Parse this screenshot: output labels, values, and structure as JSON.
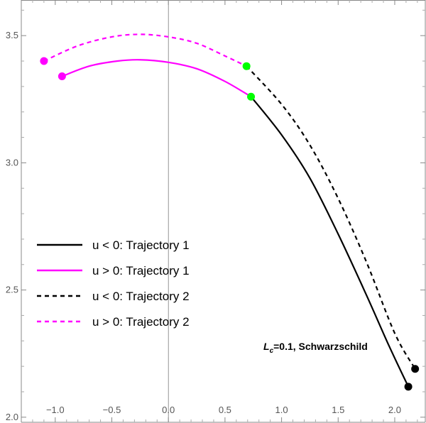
{
  "chart_data": {
    "type": "line",
    "title": "",
    "xlabel": "",
    "ylabel": "",
    "xlim": [
      -1.3,
      2.27
    ],
    "ylim": [
      1.98,
      3.64
    ],
    "x_ticks": [
      -1.0,
      -0.5,
      0.0,
      0.5,
      1.0,
      1.5,
      2.0
    ],
    "x_tick_labels": [
      "-1.0",
      "-0.5",
      "0.0",
      "0.5",
      "1.0",
      "1.5",
      "2.0"
    ],
    "y_ticks": [
      2.0,
      2.5,
      3.0,
      3.5
    ],
    "y_tick_labels": [
      "2.0",
      "2.5",
      "3.0",
      "3.5"
    ],
    "grid": false,
    "legend_position": "left-middle",
    "annotation": {
      "main": "L",
      "subscript": "c",
      "rest": "=0.1, Schwarzschild"
    },
    "colors": {
      "black": "#000000",
      "magenta": "#ff00ff",
      "green": "#00ff00"
    },
    "series": [
      {
        "name": "u < 0: Trajectory 1",
        "color": "#000000",
        "style": "solid",
        "points": [
          [
            0.73,
            3.26
          ],
          [
            1.0,
            3.11
          ],
          [
            1.25,
            2.94
          ],
          [
            1.5,
            2.72
          ],
          [
            1.75,
            2.48
          ],
          [
            1.95,
            2.28
          ],
          [
            2.12,
            2.12
          ]
        ]
      },
      {
        "name": "u > 0: Trajectory 1",
        "color": "#ff00ff",
        "style": "solid",
        "points": [
          [
            -0.94,
            3.34
          ],
          [
            -0.7,
            3.38
          ],
          [
            -0.45,
            3.4
          ],
          [
            -0.25,
            3.405
          ],
          [
            0.0,
            3.395
          ],
          [
            0.25,
            3.37
          ],
          [
            0.5,
            3.32
          ],
          [
            0.73,
            3.26
          ]
        ]
      },
      {
        "name": "u < 0: Trajectory 2",
        "color": "#000000",
        "style": "dashed",
        "points": [
          [
            0.69,
            3.38
          ],
          [
            1.0,
            3.23
          ],
          [
            1.25,
            3.07
          ],
          [
            1.5,
            2.86
          ],
          [
            1.75,
            2.61
          ],
          [
            2.0,
            2.33
          ],
          [
            2.18,
            2.19
          ]
        ]
      },
      {
        "name": "u > 0: Trajectory 2",
        "color": "#ff00ff",
        "style": "dashed",
        "points": [
          [
            -1.1,
            3.4
          ],
          [
            -0.8,
            3.46
          ],
          [
            -0.5,
            3.495
          ],
          [
            -0.25,
            3.505
          ],
          [
            0.0,
            3.495
          ],
          [
            0.25,
            3.47
          ],
          [
            0.5,
            3.42
          ],
          [
            0.69,
            3.38
          ]
        ]
      }
    ],
    "markers": [
      {
        "x": -0.94,
        "y": 3.34,
        "color": "#ff00ff"
      },
      {
        "x": -1.1,
        "y": 3.4,
        "color": "#ff00ff"
      },
      {
        "x": 0.73,
        "y": 3.26,
        "color": "#00ff00"
      },
      {
        "x": 0.69,
        "y": 3.38,
        "color": "#00ff00"
      },
      {
        "x": 2.12,
        "y": 2.12,
        "color": "#000000"
      },
      {
        "x": 2.18,
        "y": 2.19,
        "color": "#000000"
      }
    ]
  }
}
